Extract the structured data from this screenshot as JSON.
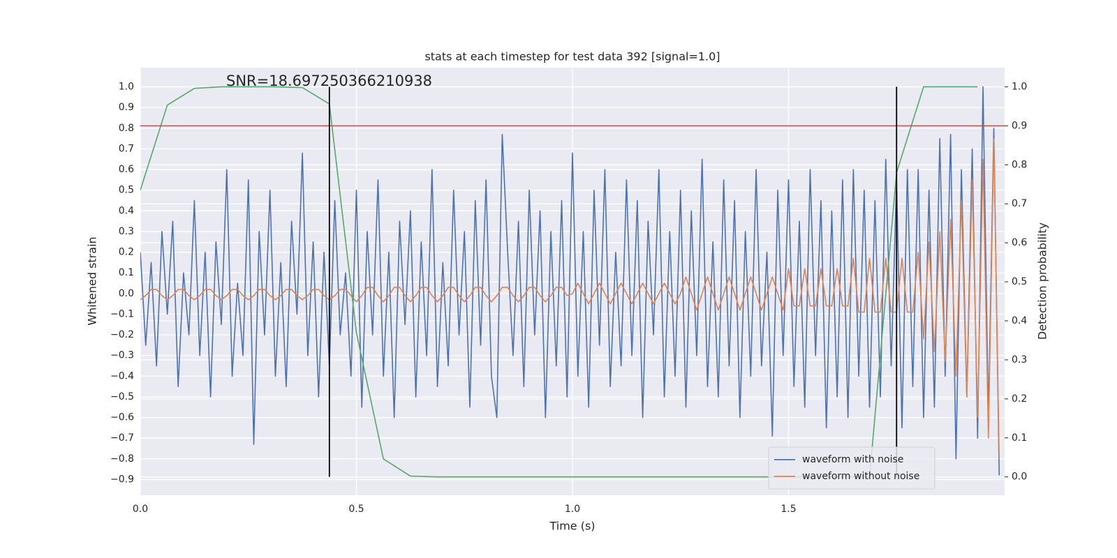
{
  "chart_data": {
    "type": "line",
    "title": "stats at each timestep for test data 392 [signal=1.0]",
    "annotation": "SNR=18.697250366210938",
    "xlabel": "Time (s)",
    "ylabel": "Whitened strain",
    "y2label": "Detection probability",
    "grid": true,
    "legend": "lower right",
    "xlim": [
      0,
      2.0
    ],
    "ylim": [
      -0.976,
      1.093
    ],
    "y2lim": [
      -0.047,
      1.049
    ],
    "xticks": [
      {
        "value": 0,
        "label": "0.0"
      },
      {
        "value": 0.5,
        "label": "0.5"
      },
      {
        "value": 1.0,
        "label": "1.0"
      },
      {
        "value": 1.5,
        "label": "1.5"
      }
    ],
    "yticks": [
      {
        "value": -0.9,
        "label": "−0.9"
      },
      {
        "value": -0.8,
        "label": "−0.8"
      },
      {
        "value": -0.7,
        "label": "−0.7"
      },
      {
        "value": -0.6,
        "label": "−0.6"
      },
      {
        "value": -0.5,
        "label": "−0.5"
      },
      {
        "value": -0.4,
        "label": "−0.4"
      },
      {
        "value": -0.3,
        "label": "−0.3"
      },
      {
        "value": -0.2,
        "label": "−0.2"
      },
      {
        "value": -0.1,
        "label": "−0.1"
      },
      {
        "value": 0,
        "label": "0.0"
      },
      {
        "value": 0.1,
        "label": "0.1"
      },
      {
        "value": 0.2,
        "label": "0.2"
      },
      {
        "value": 0.3,
        "label": "0.3"
      },
      {
        "value": 0.4,
        "label": "0.4"
      },
      {
        "value": 0.5,
        "label": "0.5"
      },
      {
        "value": 0.6,
        "label": "0.6"
      },
      {
        "value": 0.7,
        "label": "0.7"
      },
      {
        "value": 0.8,
        "label": "0.8"
      },
      {
        "value": 0.9,
        "label": "0.9"
      },
      {
        "value": 1.0,
        "label": "1.0"
      }
    ],
    "y2ticks": [
      {
        "value": 0,
        "label": "0.0"
      },
      {
        "value": 0.1,
        "label": "0.1"
      },
      {
        "value": 0.2,
        "label": "0.2"
      },
      {
        "value": 0.3,
        "label": "0.3"
      },
      {
        "value": 0.4,
        "label": "0.4"
      },
      {
        "value": 0.5,
        "label": "0.5"
      },
      {
        "value": 0.6,
        "label": "0.6"
      },
      {
        "value": 0.7,
        "label": "0.7"
      },
      {
        "value": 0.8,
        "label": "0.8"
      },
      {
        "value": 0.9,
        "label": "0.9"
      },
      {
        "value": 1.0,
        "label": "1.0"
      }
    ],
    "x": [
      0,
      0.0125,
      0.025,
      0.0375,
      0.05,
      0.0625,
      0.075,
      0.0875,
      0.1,
      0.1125,
      0.125,
      0.1375,
      0.15,
      0.1625,
      0.175,
      0.1875,
      0.2,
      0.2125,
      0.225,
      0.2375,
      0.25,
      0.2625,
      0.275,
      0.2875,
      0.3,
      0.3125,
      0.325,
      0.3375,
      0.35,
      0.3625,
      0.375,
      0.3875,
      0.4,
      0.4125,
      0.425,
      0.4375,
      0.45,
      0.4625,
      0.475,
      0.4875,
      0.5,
      0.5125,
      0.525,
      0.5375,
      0.55,
      0.5625,
      0.575,
      0.5875,
      0.6,
      0.6125,
      0.625,
      0.6375,
      0.65,
      0.6625,
      0.675,
      0.6875,
      0.7,
      0.7125,
      0.725,
      0.7375,
      0.75,
      0.7625,
      0.775,
      0.7875,
      0.8,
      0.8125,
      0.825,
      0.8375,
      0.85,
      0.8625,
      0.875,
      0.8875,
      0.9,
      0.9125,
      0.925,
      0.9375,
      0.95,
      0.9625,
      0.975,
      0.9875,
      1.0,
      1.0125,
      1.025,
      1.0375,
      1.05,
      1.0625,
      1.075,
      1.0875,
      1.1,
      1.1125,
      1.125,
      1.1375,
      1.15,
      1.1625,
      1.175,
      1.1875,
      1.2,
      1.2125,
      1.225,
      1.2375,
      1.25,
      1.2625,
      1.275,
      1.2875,
      1.3,
      1.3125,
      1.325,
      1.3375,
      1.35,
      1.3625,
      1.375,
      1.3875,
      1.4,
      1.4125,
      1.425,
      1.4375,
      1.45,
      1.4625,
      1.475,
      1.4875,
      1.5,
      1.5125,
      1.525,
      1.5375,
      1.55,
      1.5625,
      1.575,
      1.5875,
      1.6,
      1.6125,
      1.625,
      1.6375,
      1.65,
      1.6625,
      1.675,
      1.6875,
      1.7,
      1.7125,
      1.725,
      1.7375,
      1.75,
      1.7625,
      1.775,
      1.7875,
      1.8,
      1.8125,
      1.825,
      1.8375,
      1.85,
      1.8625,
      1.875,
      1.8875,
      1.9,
      1.9125,
      1.925,
      1.9375,
      1.95,
      1.9625,
      1.975,
      1.9875
    ],
    "series": [
      {
        "name": "waveform with noise",
        "color": "#4c72b0",
        "axis": "y",
        "values": [
          0.2,
          -0.25,
          0.15,
          -0.35,
          0.3,
          -0.1,
          0.35,
          -0.45,
          0.1,
          -0.2,
          0.45,
          -0.3,
          0.2,
          -0.5,
          0.25,
          -0.15,
          0.6,
          -0.4,
          0.05,
          -0.3,
          0.55,
          -0.73,
          0.3,
          -0.2,
          0.5,
          -0.4,
          0.15,
          -0.45,
          0.35,
          -0.1,
          0.68,
          -0.3,
          0.25,
          -0.5,
          0.2,
          -0.35,
          0.45,
          -0.2,
          0.1,
          -0.4,
          0.5,
          -0.55,
          0.3,
          -0.2,
          0.55,
          -0.4,
          0.2,
          -0.6,
          0.35,
          -0.15,
          0.4,
          -0.5,
          0.25,
          -0.3,
          0.6,
          -0.45,
          0.15,
          -0.35,
          0.5,
          -0.2,
          0.3,
          -0.55,
          0.45,
          -0.25,
          0.55,
          -0.4,
          -0.6,
          0.77,
          0.2,
          -0.3,
          0.35,
          -0.45,
          0.5,
          -0.2,
          0.4,
          -0.6,
          0.3,
          -0.35,
          0.45,
          -0.5,
          0.68,
          -0.4,
          0.3,
          -0.55,
          0.5,
          -0.25,
          0.6,
          -0.45,
          0.2,
          -0.35,
          0.55,
          -0.3,
          0.45,
          -0.6,
          0.35,
          -0.2,
          0.6,
          -0.5,
          0.3,
          -0.4,
          0.5,
          -0.55,
          0.4,
          -0.3,
          0.65,
          -0.45,
          0.25,
          -0.5,
          0.55,
          -0.35,
          0.45,
          -0.6,
          0.3,
          -0.4,
          0.6,
          -0.35,
          0.2,
          -0.69,
          0.5,
          -0.3,
          0.55,
          -0.45,
          0.35,
          -0.55,
          0.6,
          -0.3,
          0.45,
          -0.65,
          0.4,
          -0.5,
          0.55,
          -0.6,
          0.6,
          -0.4,
          0.5,
          -0.55,
          0.45,
          -0.5,
          0.65,
          -0.35,
          0.55,
          -0.65,
          0.6,
          -0.45,
          0.6,
          -0.6,
          0.5,
          -0.55,
          0.75,
          -0.4,
          0.77,
          -0.8,
          0.6,
          -0.5,
          0.7,
          -0.7,
          1.0,
          -0.6,
          0.8,
          -0.88
        ]
      },
      {
        "name": "waveform without noise",
        "color": "#dd8452",
        "axis": "y",
        "values": [
          -0.03,
          -0.01,
          0.02,
          0.02,
          -0.01,
          -0.03,
          -0.01,
          0.02,
          0.02,
          -0.01,
          -0.03,
          -0.01,
          0.02,
          0.02,
          -0.01,
          -0.03,
          -0.01,
          0.02,
          0.02,
          -0.01,
          -0.03,
          -0.01,
          0.02,
          0.02,
          -0.01,
          -0.03,
          -0.01,
          0.02,
          0.02,
          -0.01,
          -0.03,
          -0.01,
          0.02,
          0.02,
          -0.01,
          -0.03,
          -0.01,
          0.02,
          0.02,
          -0.01,
          -0.04,
          -0.01,
          0.03,
          0.03,
          -0.01,
          -0.04,
          -0.01,
          0.03,
          0.03,
          -0.01,
          -0.04,
          -0.01,
          0.03,
          0.03,
          -0.01,
          -0.04,
          -0.01,
          0.03,
          0.03,
          -0.01,
          -0.04,
          -0.01,
          0.03,
          0.03,
          -0.01,
          -0.04,
          -0.01,
          0.03,
          0.03,
          -0.01,
          -0.04,
          -0.01,
          0.03,
          0.03,
          -0.01,
          -0.04,
          -0.01,
          0.03,
          0.03,
          -0.01,
          0,
          0.05,
          0,
          -0.05,
          0,
          0.05,
          0,
          -0.05,
          0,
          0.05,
          0,
          -0.05,
          0,
          0.05,
          0,
          -0.05,
          0,
          0.05,
          0,
          -0.05,
          0,
          0.08,
          0,
          -0.08,
          0,
          0.08,
          0,
          -0.08,
          0,
          0.08,
          0,
          -0.08,
          0,
          0.08,
          0,
          -0.08,
          0,
          0.08,
          0,
          -0.08,
          0.12,
          -0.06,
          -0.06,
          0.12,
          -0.06,
          -0.06,
          0.12,
          -0.06,
          -0.06,
          0.12,
          -0.06,
          -0.06,
          0.17,
          -0.09,
          -0.09,
          0.17,
          -0.09,
          -0.09,
          0.17,
          -0.09,
          -0.09,
          0.17,
          -0.09,
          -0.09,
          0.2,
          -0.22,
          0.25,
          -0.28,
          0.3,
          -0.33,
          0.36,
          -0.4,
          0.45,
          -0.5,
          0.55,
          -0.6,
          0.65,
          -0.7,
          0.75,
          -0.8
        ]
      },
      {
        "color": "#55a868",
        "axis": "y2",
        "x": [
          0,
          0.0625,
          0.125,
          0.1875,
          0.25,
          0.3125,
          0.375,
          0.4375,
          0.5,
          0.5625,
          0.625,
          0.6875,
          0.75,
          0.8125,
          0.875,
          0.9375,
          1.0,
          1.0625,
          1.125,
          1.1875,
          1.25,
          1.3125,
          1.375,
          1.4375,
          1.5,
          1.5625,
          1.625,
          1.6875,
          1.75,
          1.8125,
          1.875,
          1.9375
        ],
        "values": [
          0.735,
          0.953,
          0.996,
          1.0,
          1.0,
          1.0,
          0.998,
          0.956,
          0.37,
          0.046,
          0.002,
          0,
          0,
          0,
          0,
          0,
          0,
          0,
          0,
          0,
          0,
          0,
          0,
          0,
          0,
          0,
          0,
          0,
          0.78,
          1.0,
          1.0,
          1.0
        ]
      }
    ],
    "hline": {
      "y": 0.9,
      "axis": "y2",
      "color": "#c44e52"
    },
    "vlines": {
      "x": [
        0.4375,
        1.75
      ],
      "ymin": 0,
      "ymax": 1,
      "axis": "y2",
      "color": "#000000"
    }
  }
}
